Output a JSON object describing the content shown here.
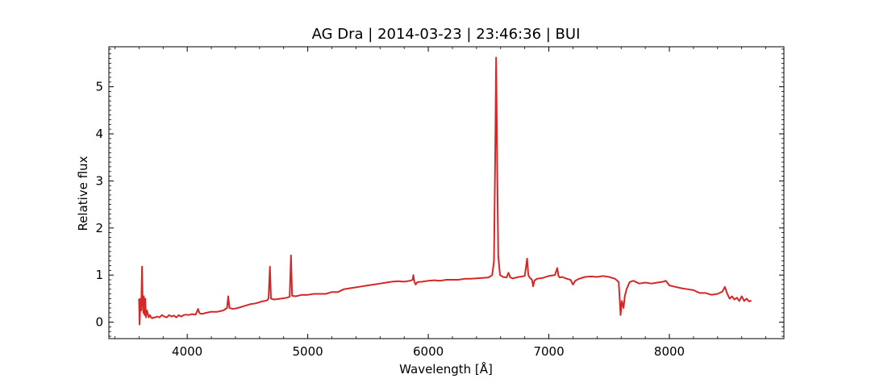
{
  "chart_data": {
    "type": "line",
    "title": "AG Dra | 2014-03-23 | 23:46:36 | BUI",
    "xlabel": "Wavelength [Å]",
    "ylabel": "Relative flux",
    "xlim": [
      3350,
      8950
    ],
    "ylim": [
      -0.35,
      5.85
    ],
    "xticks": [
      4000,
      5000,
      6000,
      7000,
      8000
    ],
    "yticks": [
      0,
      1,
      2,
      3,
      4,
      5
    ],
    "grid": false,
    "line_color": "#d62728",
    "series": [
      {
        "x": [
          3600,
          3605,
          3612,
          3618,
          3625,
          3630,
          3636,
          3640,
          3646,
          3652,
          3658,
          3665,
          3672,
          3680,
          3690,
          3700,
          3710,
          3720,
          3735,
          3750,
          3770,
          3790,
          3810,
          3830,
          3850,
          3870,
          3890,
          3910,
          3930,
          3950,
          3970,
          3990,
          4010,
          4040,
          4070,
          4090,
          4100,
          4110,
          4130,
          4160,
          4200,
          4250,
          4300,
          4330,
          4340,
          4350,
          4380,
          4420,
          4470,
          4520,
          4570,
          4620,
          4660,
          4675,
          4686,
          4695,
          4720,
          4780,
          4830,
          4850,
          4861,
          4870,
          4900,
          4950,
          5000,
          5050,
          5100,
          5150,
          5200,
          5250,
          5300,
          5350,
          5400,
          5450,
          5500,
          5550,
          5600,
          5650,
          5700,
          5750,
          5800,
          5850,
          5870,
          5876,
          5885,
          5895,
          5910,
          5950,
          6000,
          6050,
          6100,
          6150,
          6200,
          6250,
          6300,
          6350,
          6400,
          6450,
          6500,
          6530,
          6545,
          6555,
          6563,
          6571,
          6580,
          6595,
          6620,
          6650,
          6665,
          6680,
          6700,
          6750,
          6800,
          6820,
          6830,
          6840,
          6860,
          6870,
          6880,
          6900,
          6950,
          7000,
          7050,
          7070,
          7080,
          7090,
          7110,
          7150,
          7180,
          7200,
          7220,
          7250,
          7300,
          7350,
          7400,
          7450,
          7500,
          7550,
          7580,
          7595,
          7605,
          7620,
          7630,
          7645,
          7670,
          7700,
          7750,
          7800,
          7850,
          7900,
          7950,
          7970,
          8000,
          8050,
          8100,
          8150,
          8200,
          8250,
          8300,
          8350,
          8400,
          8440,
          8460,
          8480,
          8500,
          8520,
          8540,
          8560,
          8580,
          8600,
          8620,
          8640,
          8660,
          8680
        ],
        "y": [
          0.5,
          -0.05,
          0.5,
          0.25,
          1.18,
          0.5,
          0.2,
          0.55,
          0.15,
          0.5,
          0.1,
          0.25,
          0.2,
          0.1,
          0.15,
          0.1,
          0.08,
          0.1,
          0.1,
          0.12,
          0.1,
          0.15,
          0.12,
          0.1,
          0.15,
          0.12,
          0.14,
          0.1,
          0.15,
          0.12,
          0.15,
          0.16,
          0.15,
          0.17,
          0.16,
          0.28,
          0.2,
          0.18,
          0.18,
          0.2,
          0.22,
          0.22,
          0.25,
          0.3,
          0.55,
          0.3,
          0.28,
          0.3,
          0.34,
          0.38,
          0.4,
          0.44,
          0.46,
          0.5,
          1.18,
          0.5,
          0.48,
          0.5,
          0.52,
          0.54,
          1.42,
          0.56,
          0.55,
          0.58,
          0.58,
          0.6,
          0.6,
          0.6,
          0.64,
          0.64,
          0.7,
          0.72,
          0.74,
          0.76,
          0.78,
          0.8,
          0.82,
          0.84,
          0.86,
          0.87,
          0.86,
          0.88,
          0.9,
          1.0,
          0.85,
          0.8,
          0.85,
          0.86,
          0.88,
          0.89,
          0.88,
          0.9,
          0.9,
          0.9,
          0.92,
          0.92,
          0.93,
          0.94,
          0.95,
          1.0,
          1.3,
          3.5,
          5.62,
          3.5,
          1.4,
          1.0,
          0.96,
          0.95,
          1.05,
          0.95,
          0.93,
          0.96,
          0.98,
          1.35,
          1.0,
          0.95,
          0.9,
          0.76,
          0.88,
          0.92,
          0.94,
          0.98,
          1.0,
          1.15,
          0.98,
          0.95,
          0.96,
          0.92,
          0.9,
          0.8,
          0.88,
          0.92,
          0.96,
          0.97,
          0.96,
          0.98,
          0.96,
          0.92,
          0.85,
          0.15,
          0.45,
          0.3,
          0.55,
          0.7,
          0.85,
          0.88,
          0.82,
          0.84,
          0.82,
          0.84,
          0.86,
          0.88,
          0.78,
          0.75,
          0.72,
          0.7,
          0.68,
          0.62,
          0.62,
          0.58,
          0.6,
          0.65,
          0.75,
          0.6,
          0.5,
          0.55,
          0.48,
          0.52,
          0.45,
          0.55,
          0.45,
          0.5,
          0.44,
          0.46
        ]
      }
    ]
  }
}
